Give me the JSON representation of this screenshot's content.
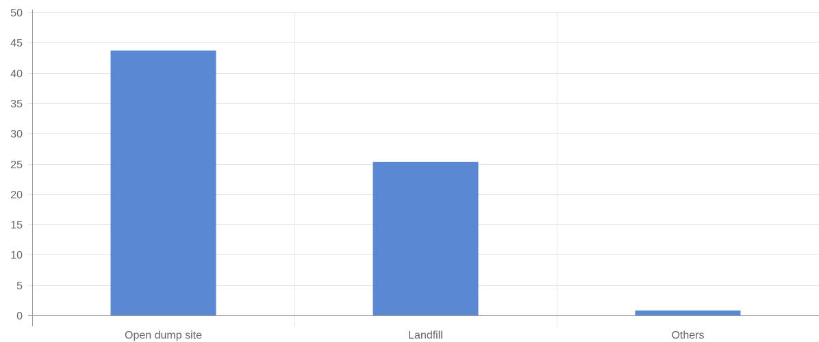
{
  "chart_data": {
    "type": "bar",
    "categories": [
      "Open dump site",
      "Landfill",
      "Others"
    ],
    "values": [
      43.7,
      25.3,
      0.8
    ],
    "ylim": [
      0,
      50
    ],
    "yticks": [
      0,
      5,
      10,
      15,
      20,
      25,
      30,
      35,
      40,
      45,
      50
    ],
    "grid": true,
    "legend": "none",
    "bar_color": "#4f7fd0"
  }
}
